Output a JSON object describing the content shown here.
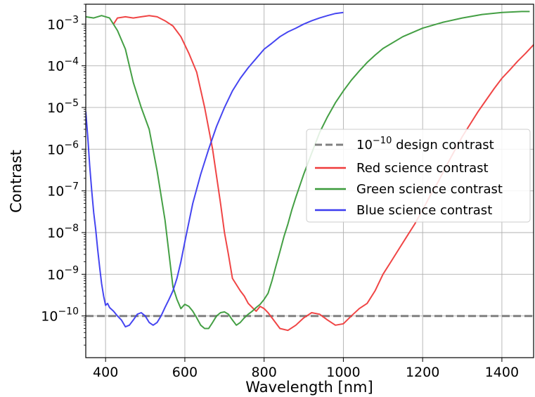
{
  "chart_data": {
    "type": "line",
    "title": "",
    "xlabel": "Wavelength [nm]",
    "ylabel": "Contrast",
    "xlim": [
      350,
      1480
    ],
    "ylim": [
      1e-11,
      0.003
    ],
    "yscale": "log",
    "grid": true,
    "legend_position": "center-right",
    "x_ticks": [
      "400",
      "600",
      "800",
      "1000",
      "1200",
      "1400"
    ],
    "y_tick_bases": [
      "10",
      "10",
      "10",
      "10",
      "10",
      "10",
      "10",
      "10"
    ],
    "y_tick_exponents": [
      "−10",
      "−9",
      "−8",
      "−7",
      "−6",
      "−5",
      "−4",
      "−3"
    ],
    "legend": [
      {
        "text_prefix_base": "10",
        "text_prefix_exp": "−10",
        "text": " design contrast",
        "color": "#808080",
        "style": "dashed"
      },
      {
        "text": "Red science contrast",
        "color": "#ef3b3b",
        "style": "solid"
      },
      {
        "text": "Green science contrast",
        "color": "#3a9a3a",
        "style": "solid"
      },
      {
        "text": "Blue science contrast",
        "color": "#3b3bf0",
        "style": "solid"
      }
    ],
    "series": [
      {
        "name": "10^-10 design contrast",
        "color": "#808080",
        "dashed": true,
        "x": [
          350,
          1480
        ],
        "y": [
          1e-10,
          1e-10
        ]
      },
      {
        "name": "Red science contrast",
        "color": "#ef3b3b",
        "x": [
          420,
          430,
          450,
          470,
          490,
          510,
          530,
          550,
          570,
          590,
          610,
          630,
          650,
          670,
          690,
          700,
          710,
          720,
          740,
          750,
          760,
          770,
          780,
          790,
          800,
          810,
          820,
          840,
          860,
          880,
          900,
          920,
          940,
          960,
          980,
          1000,
          1020,
          1040,
          1060,
          1080,
          1100,
          1120,
          1140,
          1160,
          1180,
          1200,
          1220,
          1240,
          1260,
          1280,
          1300,
          1320,
          1340,
          1360,
          1380,
          1400,
          1420,
          1440,
          1460,
          1480
        ],
        "y": [
          0.001,
          0.0014,
          0.0015,
          0.0014,
          0.0015,
          0.0016,
          0.0015,
          0.0012,
          0.0009,
          0.0005,
          0.0002,
          7e-05,
          1e-05,
          1e-06,
          5e-08,
          1e-08,
          3e-09,
          8e-10,
          4e-10,
          3e-10,
          2e-10,
          1.6e-10,
          1.3e-10,
          1.7e-10,
          1.5e-10,
          1.2e-10,
          9e-11,
          5e-11,
          4.5e-11,
          6e-11,
          9e-11,
          1.2e-10,
          1.1e-10,
          8e-11,
          6e-11,
          6.5e-11,
          1e-10,
          1.5e-10,
          2e-10,
          4e-10,
          1e-09,
          2e-09,
          4e-09,
          8e-09,
          1.6e-08,
          3.5e-08,
          8e-08,
          1.7e-07,
          4e-07,
          9e-07,
          2e-06,
          4e-06,
          8e-06,
          1.5e-05,
          2.8e-05,
          5e-05,
          8e-05,
          0.00013,
          0.0002,
          0.00032
        ]
      },
      {
        "name": "Green science contrast",
        "color": "#3a9a3a",
        "x": [
          350,
          370,
          390,
          410,
          430,
          450,
          470,
          490,
          510,
          530,
          550,
          570,
          580,
          590,
          600,
          610,
          620,
          630,
          640,
          650,
          660,
          670,
          680,
          690,
          700,
          710,
          720,
          730,
          740,
          750,
          760,
          770,
          780,
          790,
          800,
          810,
          820,
          830,
          840,
          850,
          860,
          870,
          880,
          900,
          920,
          940,
          960,
          980,
          1000,
          1020,
          1040,
          1060,
          1080,
          1100,
          1150,
          1200,
          1250,
          1300,
          1350,
          1400,
          1450,
          1470
        ],
        "y": [
          0.0015,
          0.0014,
          0.0016,
          0.0014,
          0.0007,
          0.00025,
          4e-05,
          1e-05,
          3e-06,
          3e-07,
          2e-08,
          5e-10,
          2.5e-10,
          1.5e-10,
          1.9e-10,
          1.7e-10,
          1.3e-10,
          9e-11,
          6e-11,
          5e-11,
          5e-11,
          7e-11,
          1e-10,
          1.2e-10,
          1.25e-10,
          1.1e-10,
          8e-11,
          6e-11,
          7e-11,
          9e-11,
          1.1e-10,
          1.3e-10,
          1.6e-10,
          1.9e-10,
          2.5e-10,
          3.5e-10,
          7e-10,
          1.6e-09,
          3.5e-09,
          8e-09,
          1.6e-08,
          3.5e-08,
          7e-08,
          2.5e-07,
          8e-07,
          2.5e-06,
          6e-06,
          1.3e-05,
          2.5e-05,
          4.5e-05,
          7.5e-05,
          0.00012,
          0.00018,
          0.00026,
          0.0005,
          0.0008,
          0.0011,
          0.0014,
          0.0017,
          0.0019,
          0.002,
          0.002
        ]
      },
      {
        "name": "Blue science contrast",
        "color": "#3b3bf0",
        "x": [
          350,
          355,
          360,
          365,
          370,
          375,
          380,
          385,
          390,
          395,
          400,
          405,
          410,
          420,
          430,
          440,
          450,
          460,
          470,
          480,
          490,
          500,
          510,
          520,
          530,
          540,
          550,
          560,
          570,
          580,
          590,
          600,
          620,
          640,
          660,
          680,
          700,
          720,
          740,
          760,
          780,
          800,
          820,
          840,
          860,
          880,
          900,
          920,
          940,
          960,
          980,
          1000
        ],
        "y": [
          8e-06,
          2e-06,
          4e-07,
          1e-07,
          3e-08,
          1.2e-08,
          4e-09,
          1.5e-09,
          6e-10,
          3e-10,
          1.8e-10,
          2e-10,
          1.6e-10,
          1.3e-10,
          1e-10,
          8e-11,
          5.5e-11,
          6e-11,
          8e-11,
          1.1e-10,
          1.2e-10,
          1e-10,
          7e-11,
          6e-11,
          7e-11,
          1e-10,
          1.6e-10,
          2.5e-10,
          4e-10,
          8e-10,
          2e-09,
          6e-09,
          5e-08,
          2.5e-07,
          1e-06,
          3.5e-06,
          1e-05,
          2.5e-05,
          5e-05,
          9e-05,
          0.00015,
          0.00025,
          0.00035,
          0.0005,
          0.00065,
          0.0008,
          0.001,
          0.0012,
          0.0014,
          0.0016,
          0.0018,
          0.0019
        ]
      }
    ]
  }
}
